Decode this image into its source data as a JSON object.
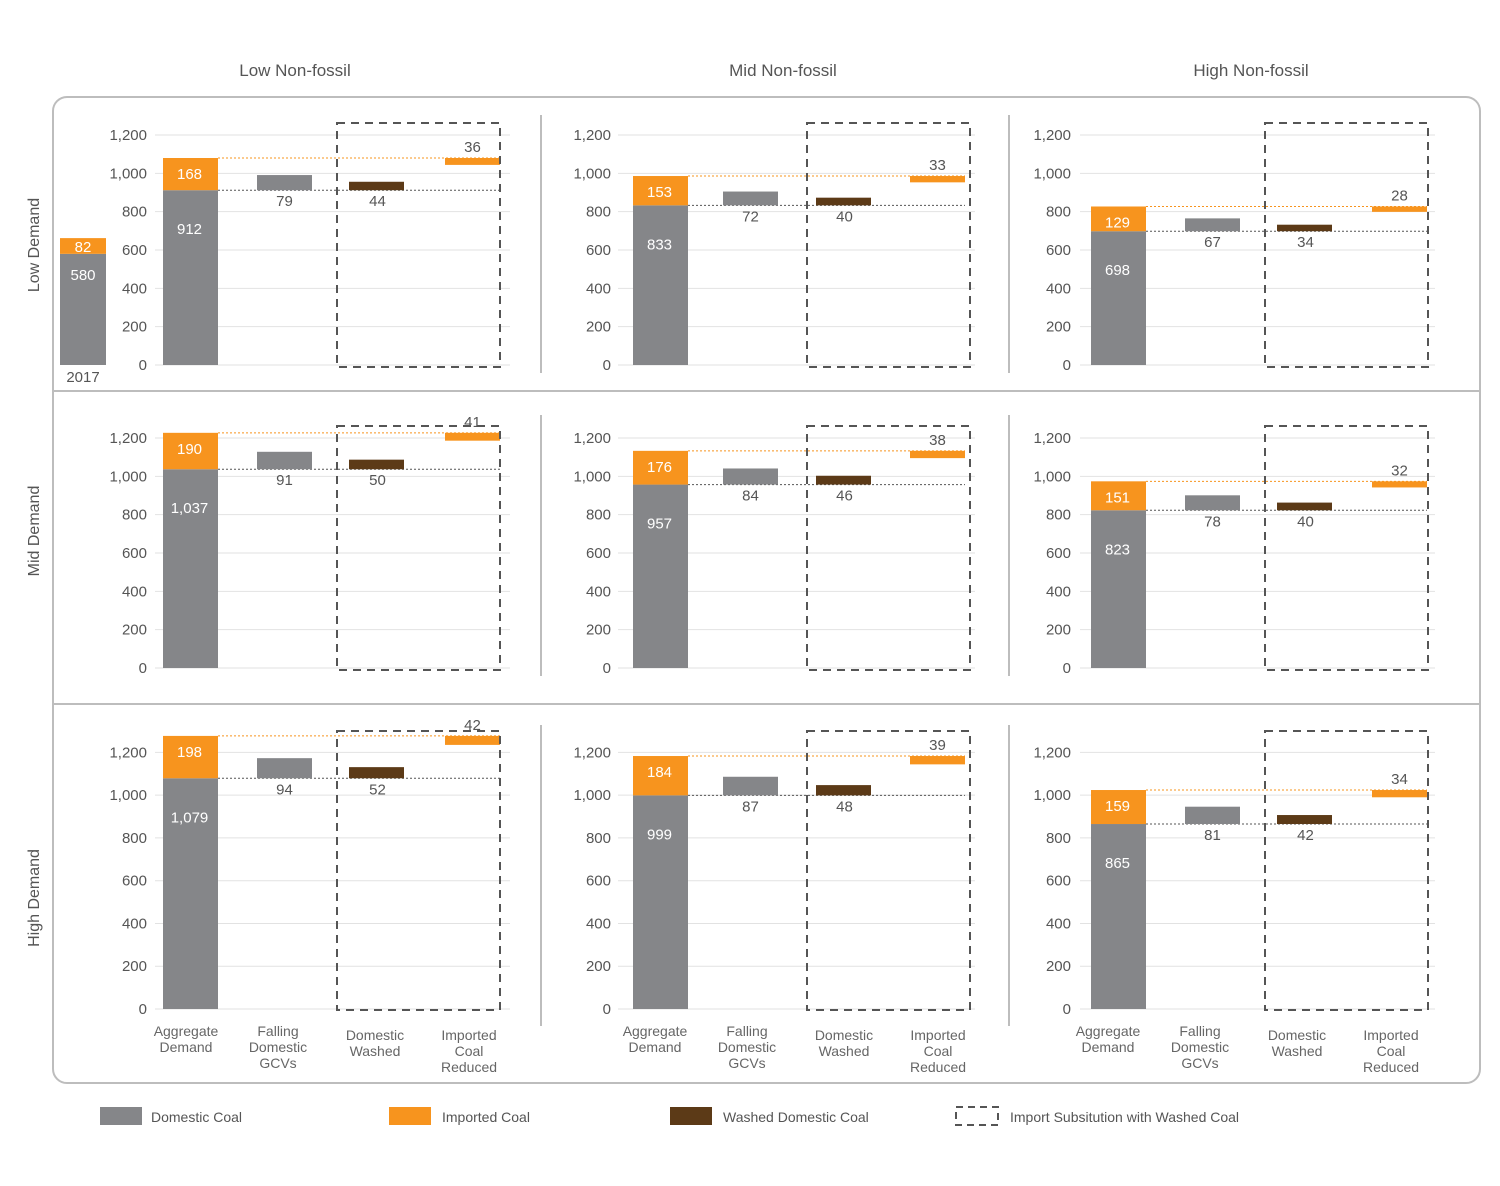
{
  "columns": [
    "Low Non-fossil",
    "Mid Non-fossil",
    "High Non-fossil"
  ],
  "rows": [
    "Low Demand",
    "Mid Demand",
    "High Demand"
  ],
  "legend": {
    "domestic": "Domestic Coal",
    "imported": "Imported Coal",
    "washed": "Washed Domestic Coal",
    "substitution": "Import Subsitution with Washed Coal"
  },
  "colors": {
    "domestic": "#858689",
    "imported": "#F7941E",
    "washed": "#5C3A17",
    "frame": "#bdbdbd",
    "text": "#555555"
  },
  "chart_data": [
    {
      "type": "bar",
      "row": "Low Demand",
      "column": "Low Non-fossil",
      "ylim": [
        0,
        1200
      ],
      "yticks": [
        "0",
        "200",
        "400",
        "600",
        "800",
        "1,000",
        "1,200"
      ],
      "baseline": {
        "label": "2017",
        "domestic": 580,
        "domestic_label": "580",
        "imported": 82,
        "imported_label": "82"
      },
      "aggregate": {
        "domestic": 912,
        "domestic_label": "912",
        "imported": 168,
        "imported_label": "168"
      },
      "falling_gcv": {
        "value": 79,
        "label": "79"
      },
      "washed": {
        "value": 44,
        "label": "44"
      },
      "imported_reduced": {
        "value": 36,
        "label": "36"
      },
      "categories": []
    },
    {
      "type": "bar",
      "row": "Low Demand",
      "column": "Mid Non-fossil",
      "ylim": [
        0,
        1200
      ],
      "yticks": [
        "0",
        "200",
        "400",
        "600",
        "800",
        "1,000",
        "1,200"
      ],
      "aggregate": {
        "domestic": 833,
        "domestic_label": "833",
        "imported": 153,
        "imported_label": "153"
      },
      "falling_gcv": {
        "value": 72,
        "label": "72"
      },
      "washed": {
        "value": 40,
        "label": "40"
      },
      "imported_reduced": {
        "value": 33,
        "label": "33"
      },
      "categories": []
    },
    {
      "type": "bar",
      "row": "Low Demand",
      "column": "High Non-fossil",
      "ylim": [
        0,
        1200
      ],
      "yticks": [
        "0",
        "200",
        "400",
        "600",
        "800",
        "1,000",
        "1,200"
      ],
      "aggregate": {
        "domestic": 698,
        "domestic_label": "698",
        "imported": 129,
        "imported_label": "129"
      },
      "falling_gcv": {
        "value": 67,
        "label": "67"
      },
      "washed": {
        "value": 34,
        "label": "34"
      },
      "imported_reduced": {
        "value": 28,
        "label": "28"
      },
      "categories": []
    },
    {
      "type": "bar",
      "row": "Mid Demand",
      "column": "Low Non-fossil",
      "ylim": [
        0,
        1200
      ],
      "yticks": [
        "0",
        "200",
        "400",
        "600",
        "800",
        "1,000",
        "1,200"
      ],
      "aggregate": {
        "domestic": 1037,
        "domestic_label": "1,037",
        "imported": 190,
        "imported_label": "190"
      },
      "falling_gcv": {
        "value": 91,
        "label": "91"
      },
      "washed": {
        "value": 50,
        "label": "50"
      },
      "imported_reduced": {
        "value": 41,
        "label": "41"
      },
      "categories": []
    },
    {
      "type": "bar",
      "row": "Mid Demand",
      "column": "Mid Non-fossil",
      "ylim": [
        0,
        1200
      ],
      "yticks": [
        "0",
        "200",
        "400",
        "600",
        "800",
        "1,000",
        "1,200"
      ],
      "aggregate": {
        "domestic": 957,
        "domestic_label": "957",
        "imported": 176,
        "imported_label": "176"
      },
      "falling_gcv": {
        "value": 84,
        "label": "84"
      },
      "washed": {
        "value": 46,
        "label": "46"
      },
      "imported_reduced": {
        "value": 38,
        "label": "38"
      },
      "categories": []
    },
    {
      "type": "bar",
      "row": "Mid Demand",
      "column": "High Non-fossil",
      "ylim": [
        0,
        1200
      ],
      "yticks": [
        "0",
        "200",
        "400",
        "600",
        "800",
        "1,000",
        "1,200"
      ],
      "aggregate": {
        "domestic": 823,
        "domestic_label": "823",
        "imported": 151,
        "imported_label": "151"
      },
      "falling_gcv": {
        "value": 78,
        "label": "78"
      },
      "washed": {
        "value": 40,
        "label": "40"
      },
      "imported_reduced": {
        "value": 32,
        "label": "32"
      },
      "categories": []
    },
    {
      "type": "bar",
      "row": "High Demand",
      "column": "Low Non-fossil",
      "ylim": [
        0,
        1300
      ],
      "yticks": [
        "0",
        "200",
        "400",
        "600",
        "800",
        "1,000",
        "1,200"
      ],
      "aggregate": {
        "domestic": 1079,
        "domestic_label": "1,079",
        "imported": 198,
        "imported_label": "198"
      },
      "falling_gcv": {
        "value": 94,
        "label": "94"
      },
      "washed": {
        "value": 52,
        "label": "52"
      },
      "imported_reduced": {
        "value": 42,
        "label": "42"
      },
      "categories": [
        "Aggregate\nDemand",
        "Falling\nDomestic\nGCVs",
        "Domestic\nWashed",
        "Imported\nCoal\nReduced"
      ]
    },
    {
      "type": "bar",
      "row": "High Demand",
      "column": "Mid Non-fossil",
      "ylim": [
        0,
        1300
      ],
      "yticks": [
        "0",
        "200",
        "400",
        "600",
        "800",
        "1,000",
        "1,200"
      ],
      "aggregate": {
        "domestic": 999,
        "domestic_label": "999",
        "imported": 184,
        "imported_label": "184"
      },
      "falling_gcv": {
        "value": 87,
        "label": "87"
      },
      "washed": {
        "value": 48,
        "label": "48"
      },
      "imported_reduced": {
        "value": 39,
        "label": "39"
      },
      "categories": [
        "Aggregate\nDemand",
        "Falling\nDomestic\nGCVs",
        "Domestic\nWashed",
        "Imported\nCoal\nReduced"
      ]
    },
    {
      "type": "bar",
      "row": "High Demand",
      "column": "High Non-fossil",
      "ylim": [
        0,
        1300
      ],
      "yticks": [
        "0",
        "200",
        "400",
        "600",
        "800",
        "1,000",
        "1,200"
      ],
      "aggregate": {
        "domestic": 865,
        "domestic_label": "865",
        "imported": 159,
        "imported_label": "159"
      },
      "falling_gcv": {
        "value": 81,
        "label": "81"
      },
      "washed": {
        "value": 42,
        "label": "42"
      },
      "imported_reduced": {
        "value": 34,
        "label": "34"
      },
      "categories": [
        "Aggregate\nDemand",
        "Falling\nDomestic\nGCVs",
        "Domestic\nWashed",
        "Imported\nCoal\nReduced"
      ]
    }
  ]
}
